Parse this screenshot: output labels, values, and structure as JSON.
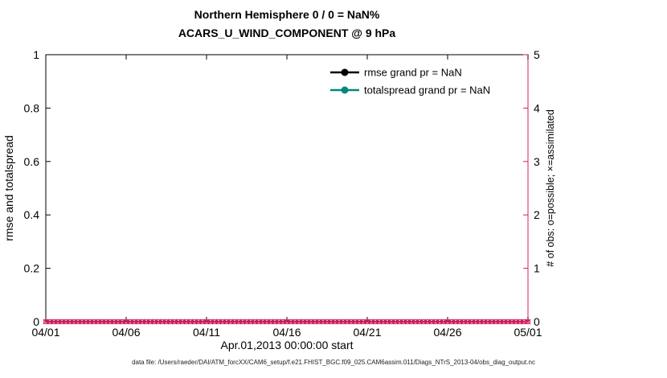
{
  "page": {
    "background": "#ffffff"
  },
  "chart_data": {
    "type": "line",
    "title_line1": "Northern Hemisphere 0 / 0 = NaN%",
    "title_line2": "ACARS_U_WIND_COMPONENT @ 9 hPa",
    "xlabel": "Apr.01,2013 00:00:00 start",
    "x_tick_labels": [
      "04/01",
      "04/06",
      "04/11",
      "04/16",
      "04/21",
      "04/26",
      "05/01"
    ],
    "x_range_days": [
      0,
      30
    ],
    "grid": false,
    "left_axis": {
      "label": "rmse and totalspread",
      "range": [
        0,
        1
      ],
      "ticks": [
        0,
        0.2,
        0.4,
        0.6,
        0.8,
        1
      ],
      "tick_labels": [
        "0",
        "0.2",
        "0.4",
        "0.6",
        "0.8",
        "1"
      ],
      "color": "#000000"
    },
    "right_axis": {
      "label": "# of obs: o=possible; ×=assimilated",
      "range": [
        0,
        5
      ],
      "ticks": [
        0,
        1,
        2,
        3,
        4,
        5
      ],
      "tick_labels": [
        "0",
        "1",
        "2",
        "3",
        "4",
        "5"
      ],
      "color": "#D81B60"
    },
    "series": [
      {
        "name": "rmse",
        "axis": "left",
        "color": "#000000",
        "marker": "filled-circle",
        "grand_pr": "NaN",
        "values": []
      },
      {
        "name": "totalspread",
        "axis": "left",
        "color": "#00897B",
        "marker": "filled-circle",
        "grand_pr": "NaN",
        "values": []
      },
      {
        "name": "possible_obs",
        "axis": "right",
        "color": "#D81B60",
        "marker": "o",
        "value_constant": 0,
        "count": 121
      },
      {
        "name": "assimilated_obs",
        "axis": "right",
        "color": "#D81B60",
        "marker": "x",
        "value_constant": 0,
        "count": 121
      }
    ],
    "legend": [
      {
        "label": "rmse grand pr = NaN",
        "line_color": "#000000",
        "marker": "filled-circle"
      },
      {
        "label": "totalspread grand pr = NaN",
        "line_color": "#00897B",
        "marker": "filled-circle"
      }
    ],
    "legend_text_color": "#0000FF",
    "legend_position": "upper-center-right-inside",
    "obs_markers": {
      "color": "#D81B60",
      "value": 0,
      "count": 121
    },
    "footer": "data file: /Users/raeder/DAI/ATM_forcXX/CAM6_setup/f.e21.FHIST_BGC.f09_025.CAM6assim.011/Diags_NTrS_2013-04/obs_diag_output.nc"
  }
}
